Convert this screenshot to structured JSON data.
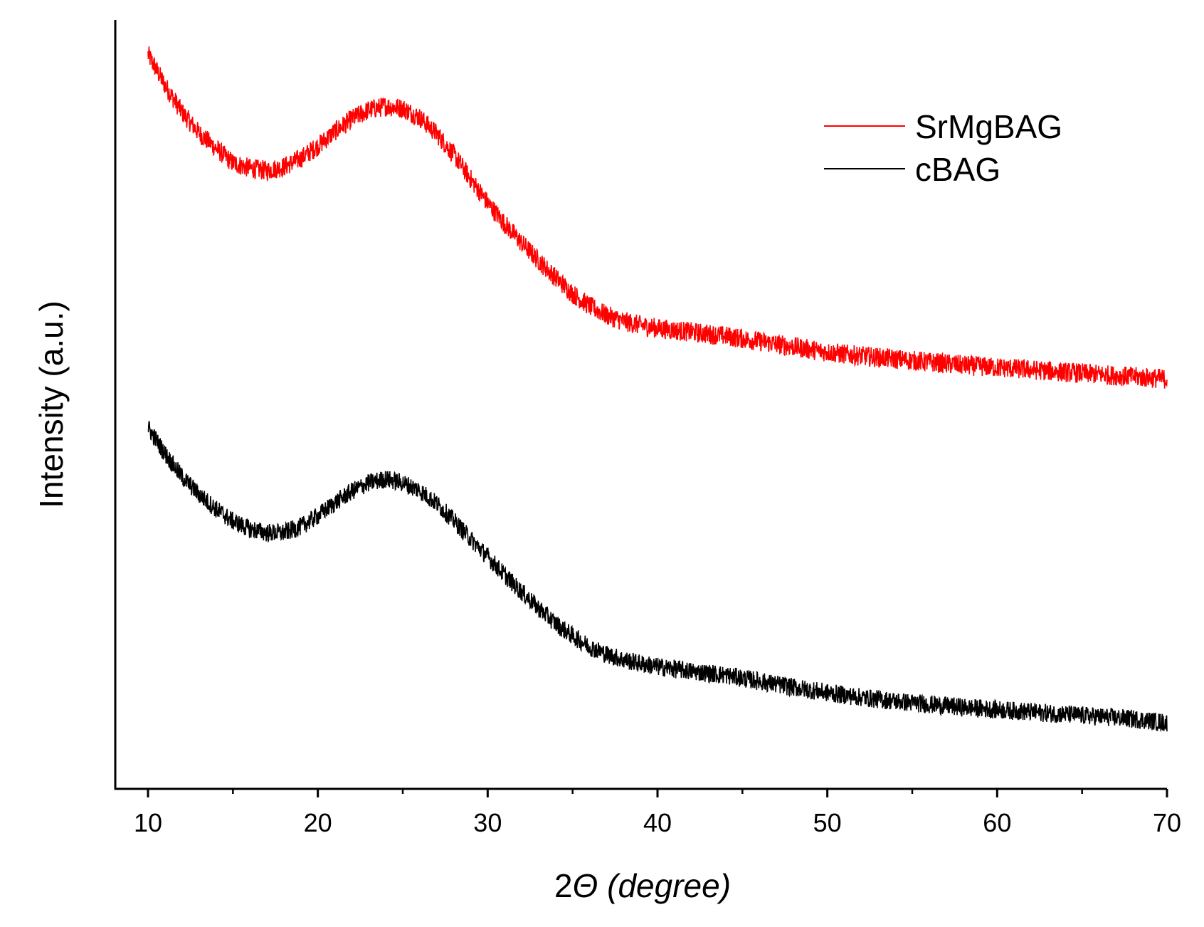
{
  "chart_data": {
    "type": "line",
    "title": "",
    "xlabel": "2Θ (degree)",
    "xlabel_parts": {
      "prefix": "2",
      "symbol": "Θ",
      "suffix": " (degree)"
    },
    "ylabel": "Intensity (a.u.)",
    "xlim": [
      10,
      70
    ],
    "ylim": [
      0,
      100
    ],
    "y_ticks_shown": false,
    "grid": false,
    "legend_position": "top-right",
    "x_major_ticks": [
      10,
      20,
      30,
      40,
      50,
      60,
      70
    ],
    "x_minor_ticks": [
      15,
      25,
      35,
      45,
      55,
      65
    ],
    "x_tick_labels": [
      "10",
      "20",
      "30",
      "40",
      "50",
      "60",
      "70"
    ],
    "series": [
      {
        "name": "SrMgBAG",
        "color": "#ff0000",
        "noise": 1.3,
        "x": [
          10,
          11,
          12,
          13,
          14,
          15,
          16,
          17,
          18,
          19,
          20,
          21,
          22,
          23,
          24,
          25,
          26,
          27,
          28,
          29,
          30,
          31,
          32,
          33,
          34,
          35,
          36,
          37,
          38,
          39,
          40,
          42,
          44,
          46,
          48,
          50,
          52,
          54,
          56,
          58,
          60,
          62,
          64,
          66,
          68,
          70
        ],
        "y": [
          95.5,
          91.5,
          88,
          85.3,
          83.3,
          81.4,
          80.7,
          80.4,
          80.9,
          82,
          83.6,
          85.5,
          87.1,
          88.3,
          88.8,
          88.5,
          87.3,
          85.2,
          82.5,
          79.3,
          76.2,
          73.5,
          71,
          68.7,
          66.5,
          64.4,
          62.8,
          61.6,
          60.8,
          60.3,
          59.9,
          59.4,
          58.9,
          58.2,
          57.5,
          56.8,
          56.3,
          55.9,
          55.5,
          55.1,
          54.8,
          54.5,
          54.2,
          53.9,
          53.6,
          53.3
        ]
      },
      {
        "name": "cBAG",
        "color": "#000000",
        "noise": 1.2,
        "x": [
          10,
          11,
          12,
          13,
          14,
          15,
          16,
          17,
          18,
          19,
          20,
          21,
          22,
          23,
          24,
          25,
          26,
          27,
          28,
          29,
          30,
          31,
          32,
          33,
          34,
          35,
          36,
          37,
          38,
          39,
          40,
          42,
          44,
          46,
          48,
          50,
          52,
          54,
          56,
          58,
          60,
          62,
          64,
          66,
          68,
          70
        ],
        "y": [
          47,
          43.6,
          40.6,
          38.3,
          36.4,
          34.8,
          33.8,
          33.3,
          33.3,
          34.1,
          35.5,
          37.2,
          38.7,
          39.8,
          40.3,
          39.8,
          38.8,
          37.1,
          34.9,
          32.5,
          30.2,
          27.8,
          25.6,
          23.5,
          21.5,
          19.9,
          18.5,
          17.5,
          16.8,
          16.3,
          15.9,
          15.3,
          14.8,
          14,
          13.2,
          12.5,
          11.9,
          11.4,
          11,
          10.6,
          10.3,
          10,
          9.7,
          9.4,
          9.1,
          8.6
        ]
      }
    ]
  }
}
